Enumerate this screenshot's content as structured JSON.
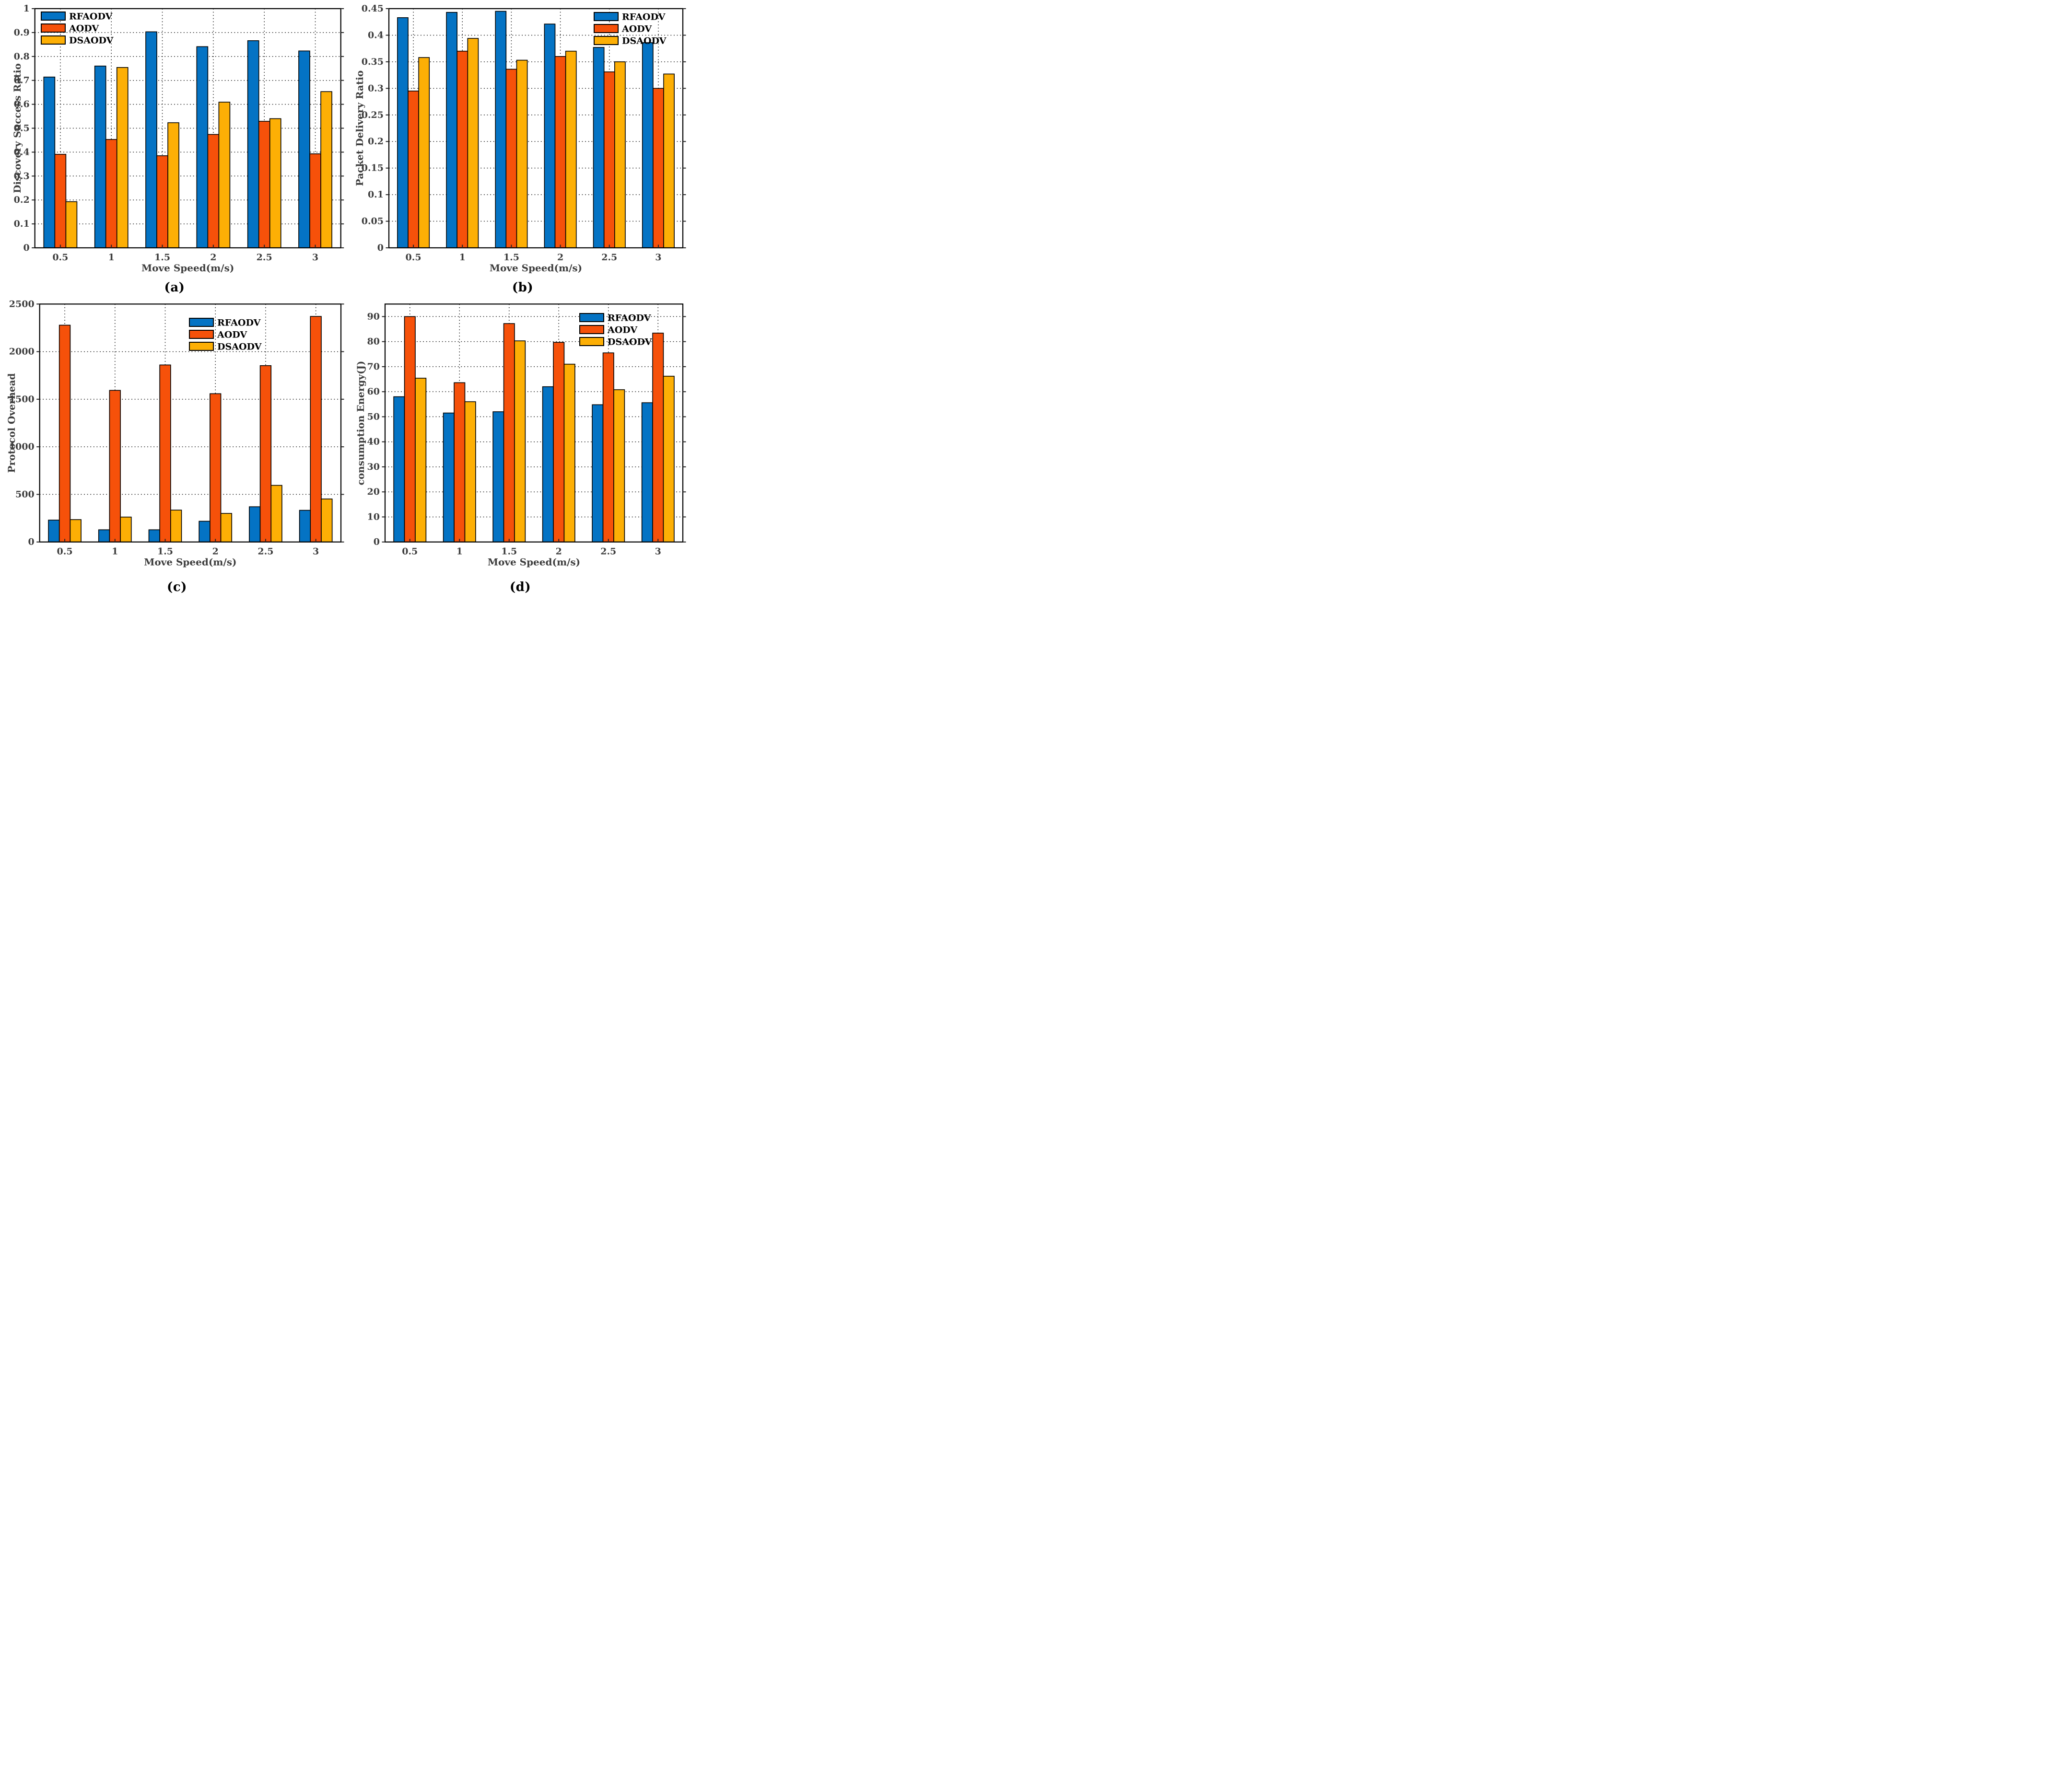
{
  "figure": {
    "series_colors": [
      "#0473C4",
      "#F6510A",
      "#FDAF05"
    ],
    "grid_color": "#161616",
    "axis_color": "#000000",
    "tick_text_color": "#3d3d3d",
    "legend_labels": [
      "RFAODV",
      "AODV",
      "DSAODV"
    ],
    "xlabel": "Move Speed(m/s)"
  },
  "chart_data": [
    {
      "id": "a",
      "type": "bar",
      "caption": "(a)",
      "ylabel": "Discovery Success Ratio",
      "xlabel": "Move Speed(m/s)",
      "categories": [
        "0.5",
        "1",
        "1.5",
        "2",
        "2.5",
        "3"
      ],
      "ylim": [
        0,
        1
      ],
      "yticks": [
        0,
        0.1,
        0.2,
        0.3,
        0.4,
        0.5,
        0.6,
        0.7,
        0.8,
        0.9,
        1
      ],
      "ytick_labels": [
        "0",
        "0.1",
        "0.2",
        "0.3",
        "0.4",
        "0.5",
        "0.6",
        "0.7",
        "0.8",
        "0.9",
        "1"
      ],
      "grid": true,
      "legend_position": "top-left",
      "series": [
        {
          "name": "RFAODV",
          "values": [
            0.714,
            0.76,
            0.903,
            0.841,
            0.866,
            0.823
          ]
        },
        {
          "name": "AODV",
          "values": [
            0.391,
            0.453,
            0.385,
            0.474,
            0.529,
            0.393
          ]
        },
        {
          "name": "DSAODV",
          "values": [
            0.193,
            0.754,
            0.523,
            0.609,
            0.54,
            0.653
          ]
        }
      ]
    },
    {
      "id": "b",
      "type": "bar",
      "caption": "(b)",
      "ylabel": "Packet Delivery Ratio",
      "xlabel": "Move Speed(m/s)",
      "categories": [
        "0.5",
        "1",
        "1.5",
        "2",
        "2.5",
        "3"
      ],
      "ylim": [
        0,
        0.45
      ],
      "yticks": [
        0,
        0.05,
        0.1,
        0.15,
        0.2,
        0.25,
        0.3,
        0.35,
        0.4,
        0.45
      ],
      "ytick_labels": [
        "0",
        "0.05",
        "0.1",
        "0.15",
        "0.2",
        "0.25",
        "0.3",
        "0.35",
        "0.4",
        "0.45"
      ],
      "grid": true,
      "legend_position": "top-right",
      "series": [
        {
          "name": "RFAODV",
          "values": [
            0.433,
            0.443,
            0.445,
            0.421,
            0.377,
            0.386
          ]
        },
        {
          "name": "AODV",
          "values": [
            0.295,
            0.37,
            0.336,
            0.36,
            0.331,
            0.3
          ]
        },
        {
          "name": "DSAODV",
          "values": [
            0.358,
            0.394,
            0.353,
            0.37,
            0.35,
            0.327
          ]
        }
      ]
    },
    {
      "id": "c",
      "type": "bar",
      "caption": "(c)",
      "ylabel": "Protocol Overhead",
      "xlabel": "Move Speed(m/s)",
      "categories": [
        "0.5",
        "1",
        "1.5",
        "2",
        "2.5",
        "3"
      ],
      "ylim": [
        0,
        2500
      ],
      "yticks": [
        0,
        500,
        1000,
        1500,
        2000,
        2500
      ],
      "ytick_labels": [
        "0",
        "500",
        "1000",
        "1500",
        "2000",
        "2500"
      ],
      "grid": true,
      "legend_position": "top-center",
      "series": [
        {
          "name": "RFAODV",
          "values": [
            230,
            128,
            128,
            218,
            370,
            333
          ]
        },
        {
          "name": "AODV",
          "values": [
            2278,
            1593,
            1860,
            1558,
            1853,
            2370
          ]
        },
        {
          "name": "DSAODV",
          "values": [
            235,
            262,
            335,
            300,
            595,
            452
          ]
        }
      ]
    },
    {
      "id": "d",
      "type": "bar",
      "caption": "(d)",
      "ylabel": "consumption Energy(J)",
      "xlabel": "Move Speed(m/s)",
      "categories": [
        "0.5",
        "1",
        "1.5",
        "2",
        "2.5",
        "3"
      ],
      "ylim": [
        0,
        95
      ],
      "yticks": [
        0,
        10,
        20,
        30,
        40,
        50,
        60,
        70,
        80,
        90
      ],
      "ytick_labels": [
        "0",
        "10",
        "20",
        "30",
        "40",
        "50",
        "60",
        "70",
        "80",
        "90"
      ],
      "grid": true,
      "legend_position": "top-right",
      "series": [
        {
          "name": "RFAODV",
          "values": [
            58.0,
            51.5,
            52.0,
            62.0,
            54.8,
            55.6
          ]
        },
        {
          "name": "AODV",
          "values": [
            90.0,
            63.6,
            87.2,
            79.7,
            75.5,
            83.4
          ]
        },
        {
          "name": "DSAODV",
          "values": [
            65.4,
            56.0,
            80.3,
            71.0,
            60.8,
            66.2
          ]
        }
      ]
    }
  ]
}
